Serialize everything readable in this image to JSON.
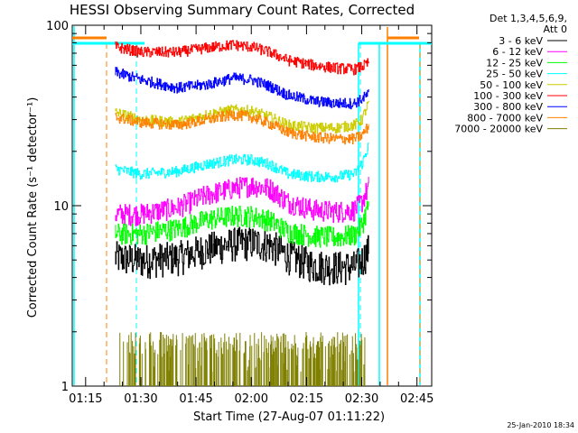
{
  "chart_data": {
    "type": "line",
    "title": "HESSI Observing Summary Count Rates, Corrected",
    "xlabel": "Start Time (27-Aug-07 01:11:22)",
    "ylabel": "Corrected Count Rate (s⁻¹ detector⁻¹)",
    "y_scale": "log",
    "ylim": [
      1,
      100
    ],
    "xlim": [
      "01:11:22",
      "02:49:00"
    ],
    "x_ticks": [
      "01:15",
      "01:30",
      "01:45",
      "02:00",
      "02:15",
      "02:30",
      "02:45"
    ],
    "x_tick_minutes": [
      75,
      90,
      105,
      120,
      135,
      150,
      165
    ],
    "y_ticks": [
      1,
      10,
      100
    ],
    "y_tick_labels": [
      "1",
      "10",
      "100"
    ],
    "grid": false,
    "legend_position": "right",
    "legend_header": [
      "Det 1,3,4,5,6,9,",
      "Att 0"
    ],
    "footer_text": "25-Jan-2010 18:34",
    "series": [
      {
        "name": "3 - 6 keV",
        "color": "#000000",
        "x": [
          83,
          90,
          100,
          108,
          115,
          120,
          125,
          130,
          137,
          143,
          148,
          150,
          152
        ],
        "y": [
          5.2,
          5.0,
          5.2,
          5.8,
          6.2,
          6.3,
          6.1,
          5.3,
          4.7,
          4.6,
          4.6,
          5.0,
          5.8
        ]
      },
      {
        "name": "6 - 12 keV",
        "color": "#ff00ff",
        "x": [
          83,
          90,
          100,
          108,
          115,
          120,
          125,
          130,
          137,
          143,
          148,
          150,
          152
        ],
        "y": [
          9.0,
          9.0,
          9.8,
          11.5,
          12.5,
          13.0,
          12.5,
          10.5,
          9.5,
          9.3,
          9.5,
          10.5,
          13.0
        ]
      },
      {
        "name": "12 - 25 keV",
        "color": "#00ff00",
        "x": [
          83,
          90,
          100,
          108,
          115,
          120,
          125,
          130,
          137,
          143,
          148,
          150,
          152
        ],
        "y": [
          7.0,
          7.0,
          7.5,
          8.4,
          8.8,
          8.8,
          8.3,
          7.2,
          6.8,
          6.7,
          6.9,
          7.8,
          10.5
        ]
      },
      {
        "name": "25 - 50 keV",
        "color": "#00ffff",
        "x": [
          83,
          90,
          100,
          108,
          115,
          120,
          125,
          130,
          137,
          143,
          148,
          150,
          152
        ],
        "y": [
          16.0,
          15.0,
          15.5,
          17.0,
          18.0,
          18.0,
          17.0,
          15.0,
          14.5,
          14.5,
          15.0,
          17.0,
          22.0
        ]
      },
      {
        "name": "50 - 100 keV",
        "color": "#cccc00",
        "x": [
          83,
          90,
          100,
          108,
          115,
          120,
          125,
          130,
          137,
          143,
          148,
          150,
          152
        ],
        "y": [
          33.0,
          30.0,
          29.0,
          32.0,
          34.0,
          33.5,
          31.0,
          28.0,
          27.0,
          27.0,
          28.0,
          30.0,
          38.0
        ]
      },
      {
        "name": "100 - 300 keV",
        "color": "#ff0000",
        "x": [
          83,
          90,
          100,
          108,
          115,
          120,
          125,
          130,
          137,
          143,
          148,
          150,
          152
        ],
        "y": [
          76.0,
          71.0,
          71.0,
          75.0,
          78.0,
          76.0,
          71.0,
          64.0,
          60.0,
          58.0,
          57.0,
          59.0,
          62.0
        ]
      },
      {
        "name": "300 - 800 keV",
        "color": "#0000ff",
        "x": [
          83,
          90,
          100,
          108,
          115,
          120,
          125,
          130,
          137,
          143,
          148,
          150,
          152
        ],
        "y": [
          55.0,
          50.0,
          45.0,
          47.0,
          51.0,
          50.0,
          46.0,
          41.0,
          38.0,
          37.0,
          37.0,
          39.0,
          42.0
        ]
      },
      {
        "name": "800 - 7000 keV",
        "color": "#ff8000",
        "x": [
          83,
          90,
          100,
          108,
          115,
          120,
          125,
          130,
          137,
          143,
          148,
          150,
          152
        ],
        "y": [
          31.0,
          29.0,
          28.0,
          30.0,
          32.0,
          31.0,
          28.5,
          25.5,
          24.0,
          23.5,
          23.5,
          24.5,
          28.0
        ]
      },
      {
        "name": "7000 - 20000 keV",
        "color": "#808000",
        "x": [
          84,
          91,
          101,
          107,
          111,
          114,
          118,
          122,
          133,
          137,
          145,
          149,
          151
        ],
        "y": [
          1.5,
          1.0,
          1.6,
          1.0,
          1.9,
          1.0,
          2.0,
          1.0,
          1.4,
          1.0,
          1.8,
          1.0,
          1.3
        ]
      }
    ]
  }
}
